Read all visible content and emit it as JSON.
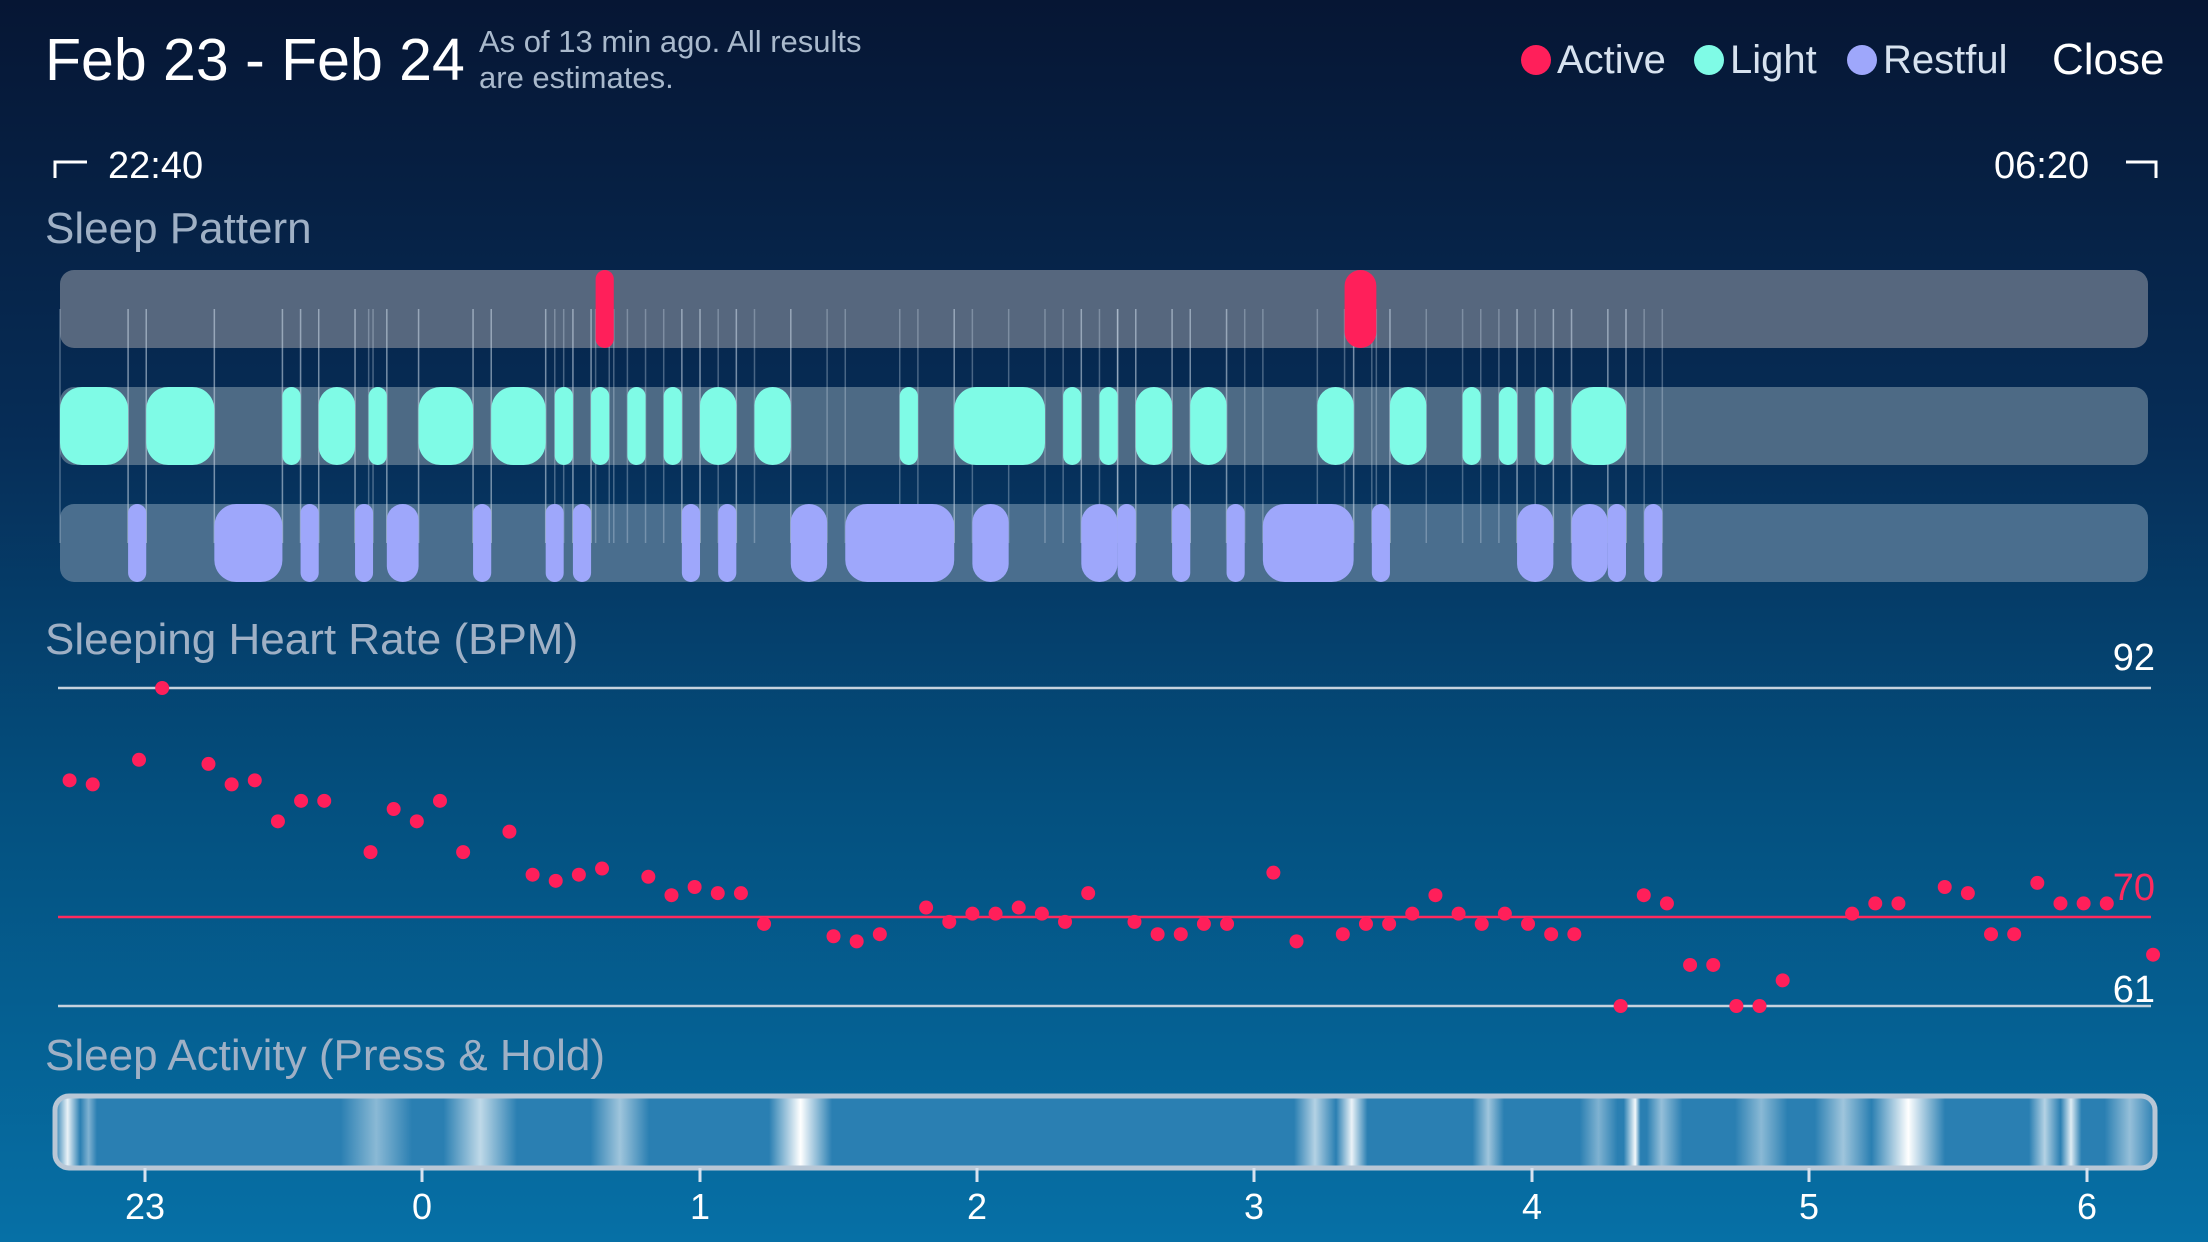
{
  "header": {
    "title": "Feb 23 - Feb 24",
    "subtitle_line1": "As of 13 min ago. All results",
    "subtitle_line2": "are estimates.",
    "close_label": "Close"
  },
  "legend": [
    {
      "label": "Active",
      "color": "#ff1f5a"
    },
    {
      "label": "Light",
      "color": "#7ffbe6"
    },
    {
      "label": "Restful",
      "color": "#9ea7fb"
    }
  ],
  "range": {
    "start": "22:40",
    "end": "06:20"
  },
  "sleep_pattern": {
    "title": "Sleep Pattern",
    "start_minute": 0,
    "end_minute": 460,
    "active": [
      [
        118,
        122
      ],
      [
        283,
        290
      ]
    ],
    "light": [
      [
        0,
        15
      ],
      [
        19,
        34
      ],
      [
        49,
        53
      ],
      [
        57,
        65
      ],
      [
        68,
        72
      ],
      [
        79,
        91
      ],
      [
        95,
        107
      ],
      [
        109,
        113
      ],
      [
        117,
        121
      ],
      [
        125,
        129
      ],
      [
        133,
        137
      ],
      [
        141,
        149
      ],
      [
        153,
        161
      ],
      [
        185,
        189
      ],
      [
        197,
        217
      ],
      [
        221,
        225
      ],
      [
        229,
        233
      ],
      [
        237,
        245
      ],
      [
        249,
        257
      ],
      [
        277,
        285
      ],
      [
        293,
        301
      ],
      [
        309,
        313
      ],
      [
        317,
        321
      ],
      [
        325,
        329
      ],
      [
        333,
        345
      ]
    ],
    "restful": [
      [
        15,
        19
      ],
      [
        34,
        49
      ],
      [
        53,
        57
      ],
      [
        65,
        68
      ],
      [
        72,
        79
      ],
      [
        91,
        95
      ],
      [
        107,
        109
      ],
      [
        113,
        117
      ],
      [
        137,
        141
      ],
      [
        145,
        149
      ],
      [
        161,
        169
      ],
      [
        173,
        197
      ],
      [
        201,
        209
      ],
      [
        225,
        233
      ],
      [
        233,
        237
      ],
      [
        245,
        249
      ],
      [
        257,
        261
      ],
      [
        265,
        285
      ],
      [
        289,
        293
      ],
      [
        321,
        329
      ],
      [
        333,
        341
      ],
      [
        341,
        345
      ],
      [
        349,
        353
      ]
    ]
  },
  "heart_rate": {
    "title": "Sleeping Heart Rate (BPM)",
    "max_label": "92",
    "avg_label": "70",
    "min_label": "61",
    "ymin": 61,
    "ymax": 92,
    "avg": 70,
    "points": [
      [
        0.5,
        83
      ],
      [
        1.5,
        82.6
      ],
      [
        3.5,
        85
      ],
      [
        4.5,
        92
      ],
      [
        6.5,
        84.6
      ],
      [
        7.5,
        82.6
      ],
      [
        8.5,
        83
      ],
      [
        9.5,
        79
      ],
      [
        10.5,
        81
      ],
      [
        11.5,
        81
      ],
      [
        13.5,
        76
      ],
      [
        14.5,
        80.2
      ],
      [
        15.5,
        79
      ],
      [
        16.5,
        81
      ],
      [
        17.5,
        76
      ],
      [
        19.5,
        78
      ],
      [
        20.5,
        73.8
      ],
      [
        21.5,
        73.2
      ],
      [
        22.5,
        73.8
      ],
      [
        23.5,
        74.4
      ],
      [
        25.5,
        73.6
      ],
      [
        26.5,
        71.8
      ],
      [
        27.5,
        72.6
      ],
      [
        28.5,
        72
      ],
      [
        29.5,
        72
      ],
      [
        30.5,
        69
      ],
      [
        33.5,
        67.8
      ],
      [
        34.5,
        67.3
      ],
      [
        35.5,
        68
      ],
      [
        37.5,
        70.6
      ],
      [
        38.5,
        69.2
      ],
      [
        39.5,
        70
      ],
      [
        40.5,
        70
      ],
      [
        41.5,
        70.6
      ],
      [
        42.5,
        70
      ],
      [
        43.5,
        69.2
      ],
      [
        44.5,
        72
      ],
      [
        46.5,
        69.2
      ],
      [
        47.5,
        68
      ],
      [
        48.5,
        68
      ],
      [
        49.5,
        69
      ],
      [
        50.5,
        69
      ],
      [
        52.5,
        74
      ],
      [
        53.5,
        67.3
      ],
      [
        55.5,
        68
      ],
      [
        56.5,
        69
      ],
      [
        57.5,
        69
      ],
      [
        58.5,
        70
      ],
      [
        59.5,
        71.8
      ],
      [
        60.5,
        70
      ],
      [
        61.5,
        69
      ],
      [
        62.5,
        70
      ],
      [
        63.5,
        69
      ],
      [
        64.5,
        68
      ],
      [
        65.5,
        68
      ],
      [
        67.5,
        61
      ],
      [
        68.5,
        71.8
      ],
      [
        69.5,
        71
      ],
      [
        70.5,
        65
      ],
      [
        71.5,
        65
      ],
      [
        72.5,
        61
      ],
      [
        73.5,
        61
      ],
      [
        74.5,
        63.5
      ],
      [
        77.5,
        70
      ],
      [
        78.5,
        71
      ],
      [
        79.5,
        71
      ],
      [
        81.5,
        72.6
      ],
      [
        82.5,
        72
      ],
      [
        83.5,
        68
      ],
      [
        84.5,
        68
      ],
      [
        85.5,
        73
      ],
      [
        86.5,
        71
      ],
      [
        87.5,
        71
      ],
      [
        88.5,
        71
      ],
      [
        90.5,
        66
      ]
    ]
  },
  "sleep_activity": {
    "title": "Sleep Activity (Press & Hold)",
    "ticks": [
      "23",
      "0",
      "1",
      "2",
      "3",
      "4",
      "5",
      "6"
    ],
    "highlights": [
      [
        0.0,
        0.012,
        0.9
      ],
      [
        0.012,
        0.02,
        0.4
      ],
      [
        0.136,
        0.17,
        0.45
      ],
      [
        0.185,
        0.22,
        0.7
      ],
      [
        0.255,
        0.283,
        0.55
      ],
      [
        0.34,
        0.37,
        1.0
      ],
      [
        0.59,
        0.61,
        0.65
      ],
      [
        0.61,
        0.625,
        0.9
      ],
      [
        0.675,
        0.69,
        0.55
      ],
      [
        0.747,
        0.758,
        0.95
      ],
      [
        0.726,
        0.744,
        0.4
      ],
      [
        0.755,
        0.775,
        0.5
      ],
      [
        0.8,
        0.825,
        0.45
      ],
      [
        0.838,
        0.865,
        0.55
      ],
      [
        0.865,
        0.9,
        1.0
      ],
      [
        0.94,
        0.955,
        0.65
      ],
      [
        0.955,
        0.965,
        0.85
      ],
      [
        0.976,
        1.0,
        0.5
      ]
    ]
  }
}
